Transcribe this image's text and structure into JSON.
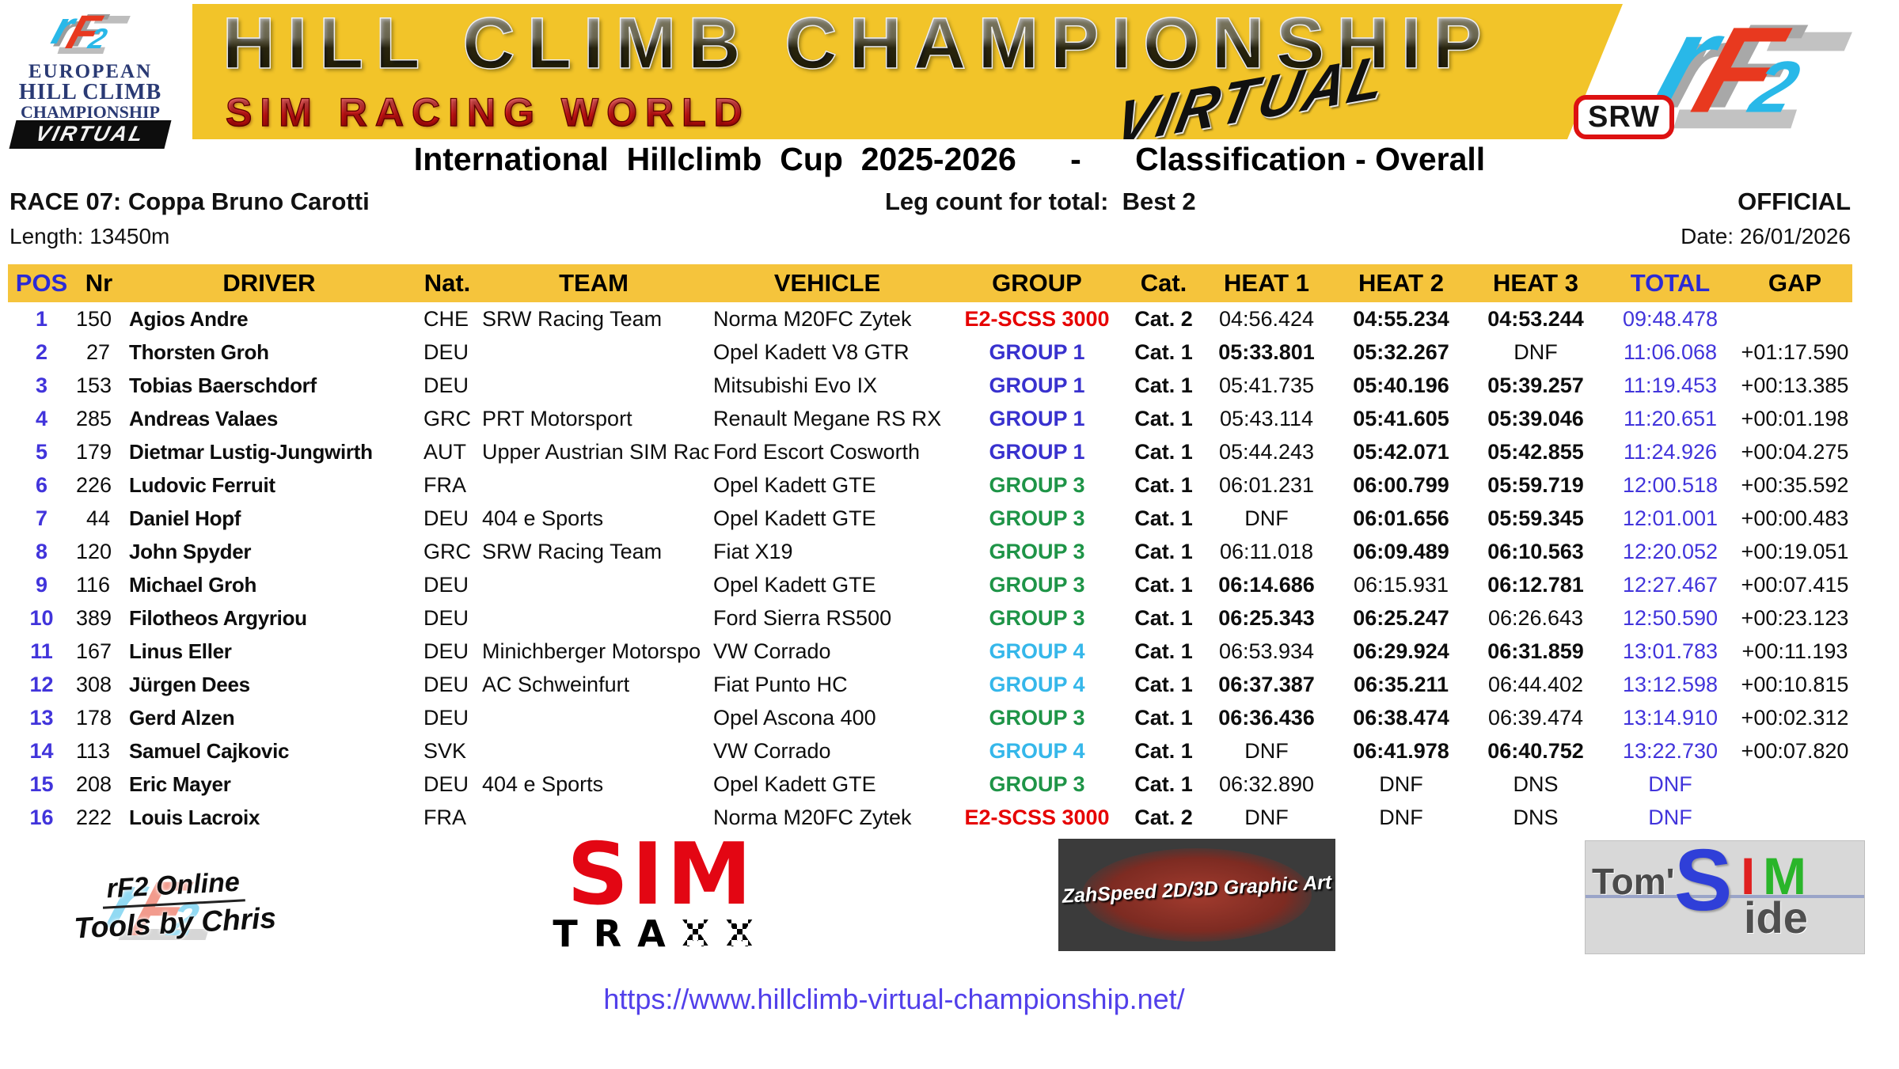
{
  "header": {
    "ehcc_logo": {
      "line1": "EUROPEAN",
      "line2": "HILL CLIMB",
      "line3": "CHAMPIONSHIP",
      "virtual": "VIRTUAL"
    },
    "banner": {
      "title": "HILL CLIMB CHAMPIONSHIP",
      "subtitle": "SIM RACING WORLD",
      "script": "VIRTUAL"
    },
    "srw_badge": "SRW"
  },
  "title_line": "International  Hillclimb  Cup  2025-2026      -      Classification - Overall",
  "race_info": {
    "race": "RACE 07: Coppa Bruno Carotti",
    "leg_count": "Leg count for total:  Best 2",
    "status": "OFFICIAL",
    "length": "Length: 13450m",
    "date": "Date: 26/01/2026"
  },
  "table": {
    "columns": [
      {
        "key": "pos",
        "label": "POS",
        "accent": true
      },
      {
        "key": "nr",
        "label": "Nr"
      },
      {
        "key": "driver",
        "label": "DRIVER"
      },
      {
        "key": "nat",
        "label": "Nat."
      },
      {
        "key": "team",
        "label": "TEAM"
      },
      {
        "key": "vehicle",
        "label": "VEHICLE"
      },
      {
        "key": "group",
        "label": "GROUP"
      },
      {
        "key": "cat",
        "label": "Cat."
      },
      {
        "key": "h1",
        "label": "HEAT 1"
      },
      {
        "key": "h2",
        "label": "HEAT 2"
      },
      {
        "key": "h3",
        "label": "HEAT 3"
      },
      {
        "key": "total",
        "label": "TOTAL",
        "accent": true
      },
      {
        "key": "gap",
        "label": "GAP"
      }
    ],
    "group_colors": {
      "E2-SCSS 3000": "#e60000",
      "GROUP 1": "#3831ce",
      "GROUP 3": "#1e9447",
      "GROUP 4": "#35b7ea"
    },
    "rows": [
      {
        "pos": "1",
        "nr": "150",
        "driver": "Agios Andre",
        "nat": "CHE",
        "team": "SRW Racing Team",
        "vehicle": "Norma M20FC Zytek",
        "group": "E2-SCSS 3000",
        "cat": "Cat. 2",
        "heats": [
          "04:56.424",
          "04:55.234",
          "04:53.244"
        ],
        "heats_bold": [
          false,
          true,
          true
        ],
        "total": "09:48.478",
        "gap": ""
      },
      {
        "pos": "2",
        "nr": "27",
        "driver": "Thorsten Groh",
        "nat": "DEU",
        "team": "",
        "vehicle": "Opel Kadett V8 GTR",
        "group": "GROUP 1",
        "cat": "Cat. 1",
        "heats": [
          "05:33.801",
          "05:32.267",
          "DNF"
        ],
        "heats_bold": [
          true,
          true,
          false
        ],
        "total": "11:06.068",
        "gap": "+01:17.590"
      },
      {
        "pos": "3",
        "nr": "153",
        "driver": "Tobias Baerschdorf",
        "nat": "DEU",
        "team": "",
        "vehicle": "Mitsubishi Evo IX",
        "group": "GROUP 1",
        "cat": "Cat. 1",
        "heats": [
          "05:41.735",
          "05:40.196",
          "05:39.257"
        ],
        "heats_bold": [
          false,
          true,
          true
        ],
        "total": "11:19.453",
        "gap": "+00:13.385"
      },
      {
        "pos": "4",
        "nr": "285",
        "driver": "Andreas Valaes",
        "nat": "GRC",
        "team": "PRT Motorsport",
        "vehicle": "Renault Megane RS RX",
        "group": "GROUP 1",
        "cat": "Cat. 1",
        "heats": [
          "05:43.114",
          "05:41.605",
          "05:39.046"
        ],
        "heats_bold": [
          false,
          true,
          true
        ],
        "total": "11:20.651",
        "gap": "+00:01.198"
      },
      {
        "pos": "5",
        "nr": "179",
        "driver": "Dietmar Lustig-Jungwirth",
        "nat": "AUT",
        "team": "Upper Austrian SIM Rac",
        "vehicle": "Ford Escort Cosworth",
        "group": "GROUP 1",
        "cat": "Cat. 1",
        "heats": [
          "05:44.243",
          "05:42.071",
          "05:42.855"
        ],
        "heats_bold": [
          false,
          true,
          true
        ],
        "total": "11:24.926",
        "gap": "+00:04.275"
      },
      {
        "pos": "6",
        "nr": "226",
        "driver": "Ludovic Ferruit",
        "nat": "FRA",
        "team": "",
        "vehicle": "Opel Kadett GTE",
        "group": "GROUP 3",
        "cat": "Cat. 1",
        "heats": [
          "06:01.231",
          "06:00.799",
          "05:59.719"
        ],
        "heats_bold": [
          false,
          true,
          true
        ],
        "total": "12:00.518",
        "gap": "+00:35.592"
      },
      {
        "pos": "7",
        "nr": "44",
        "driver": "Daniel Hopf",
        "nat": "DEU",
        "team": "404 e Sports",
        "vehicle": "Opel Kadett GTE",
        "group": "GROUP 3",
        "cat": "Cat. 1",
        "heats": [
          "DNF",
          "06:01.656",
          "05:59.345"
        ],
        "heats_bold": [
          false,
          true,
          true
        ],
        "total": "12:01.001",
        "gap": "+00:00.483"
      },
      {
        "pos": "8",
        "nr": "120",
        "driver": "John Spyder",
        "nat": "GRC",
        "team": "SRW Racing Team",
        "vehicle": "Fiat X19",
        "group": "GROUP 3",
        "cat": "Cat. 1",
        "heats": [
          "06:11.018",
          "06:09.489",
          "06:10.563"
        ],
        "heats_bold": [
          false,
          true,
          true
        ],
        "total": "12:20.052",
        "gap": "+00:19.051"
      },
      {
        "pos": "9",
        "nr": "116",
        "driver": "Michael Groh",
        "nat": "DEU",
        "team": "",
        "vehicle": "Opel Kadett GTE",
        "group": "GROUP 3",
        "cat": "Cat. 1",
        "heats": [
          "06:14.686",
          "06:15.931",
          "06:12.781"
        ],
        "heats_bold": [
          true,
          false,
          true
        ],
        "total": "12:27.467",
        "gap": "+00:07.415"
      },
      {
        "pos": "10",
        "nr": "389",
        "driver": "Filotheos Argyriou",
        "nat": "DEU",
        "team": "",
        "vehicle": "Ford Sierra RS500",
        "group": "GROUP 3",
        "cat": "Cat. 1",
        "heats": [
          "06:25.343",
          "06:25.247",
          "06:26.643"
        ],
        "heats_bold": [
          true,
          true,
          false
        ],
        "total": "12:50.590",
        "gap": "+00:23.123"
      },
      {
        "pos": "11",
        "nr": "167",
        "driver": "Linus Eller",
        "nat": "DEU",
        "team": "Minichberger Motorspo",
        "vehicle": "VW Corrado",
        "group": "GROUP 4",
        "cat": "Cat. 1",
        "heats": [
          "06:53.934",
          "06:29.924",
          "06:31.859"
        ],
        "heats_bold": [
          false,
          true,
          true
        ],
        "total": "13:01.783",
        "gap": "+00:11.193"
      },
      {
        "pos": "12",
        "nr": "308",
        "driver": "Jürgen Dees",
        "nat": "DEU",
        "team": "AC Schweinfurt",
        "vehicle": "Fiat Punto HC",
        "group": "GROUP 4",
        "cat": "Cat. 1",
        "heats": [
          "06:37.387",
          "06:35.211",
          "06:44.402"
        ],
        "heats_bold": [
          true,
          true,
          false
        ],
        "total": "13:12.598",
        "gap": "+00:10.815"
      },
      {
        "pos": "13",
        "nr": "178",
        "driver": "Gerd Alzen",
        "nat": "DEU",
        "team": "",
        "vehicle": "Opel Ascona 400",
        "group": "GROUP 3",
        "cat": "Cat. 1",
        "heats": [
          "06:36.436",
          "06:38.474",
          "06:39.474"
        ],
        "heats_bold": [
          true,
          true,
          false
        ],
        "total": "13:14.910",
        "gap": "+00:02.312"
      },
      {
        "pos": "14",
        "nr": "113",
        "driver": "Samuel Cajkovic",
        "nat": "SVK",
        "team": "",
        "vehicle": "VW Corrado",
        "group": "GROUP 4",
        "cat": "Cat. 1",
        "heats": [
          "DNF",
          "06:41.978",
          "06:40.752"
        ],
        "heats_bold": [
          false,
          true,
          true
        ],
        "total": "13:22.730",
        "gap": "+00:07.820"
      },
      {
        "pos": "15",
        "nr": "208",
        "driver": "Eric Mayer",
        "nat": "DEU",
        "team": "404 e Sports",
        "vehicle": "Opel Kadett GTE",
        "group": "GROUP 3",
        "cat": "Cat. 1",
        "heats": [
          "06:32.890",
          "DNF",
          "DNS"
        ],
        "heats_bold": [
          false,
          false,
          false
        ],
        "total": "DNF",
        "gap": ""
      },
      {
        "pos": "16",
        "nr": "222",
        "driver": "Louis Lacroix",
        "nat": "FRA",
        "team": "",
        "vehicle": "Norma M20FC Zytek",
        "group": "E2-SCSS 3000",
        "cat": "Cat. 2",
        "heats": [
          "DNF",
          "DNF",
          "DNS"
        ],
        "heats_bold": [
          false,
          false,
          false
        ],
        "total": "DNF",
        "gap": ""
      }
    ]
  },
  "footer": {
    "logo1_line1": "rF2 Online",
    "logo1_line2": "Tools by Chris",
    "logo2_sim": "SIM",
    "logo2_tra": "TRA",
    "logo2_xx": "XX",
    "logo3": "ZahSpeed 2D/3D Graphic Art",
    "logo4_tom": "Tom'",
    "logo4_s": "S",
    "logo4_i": "I",
    "logo4_m": "M",
    "logo4_ide": "ide",
    "url": "https://www.hillclimb-virtual-championship.net/"
  }
}
